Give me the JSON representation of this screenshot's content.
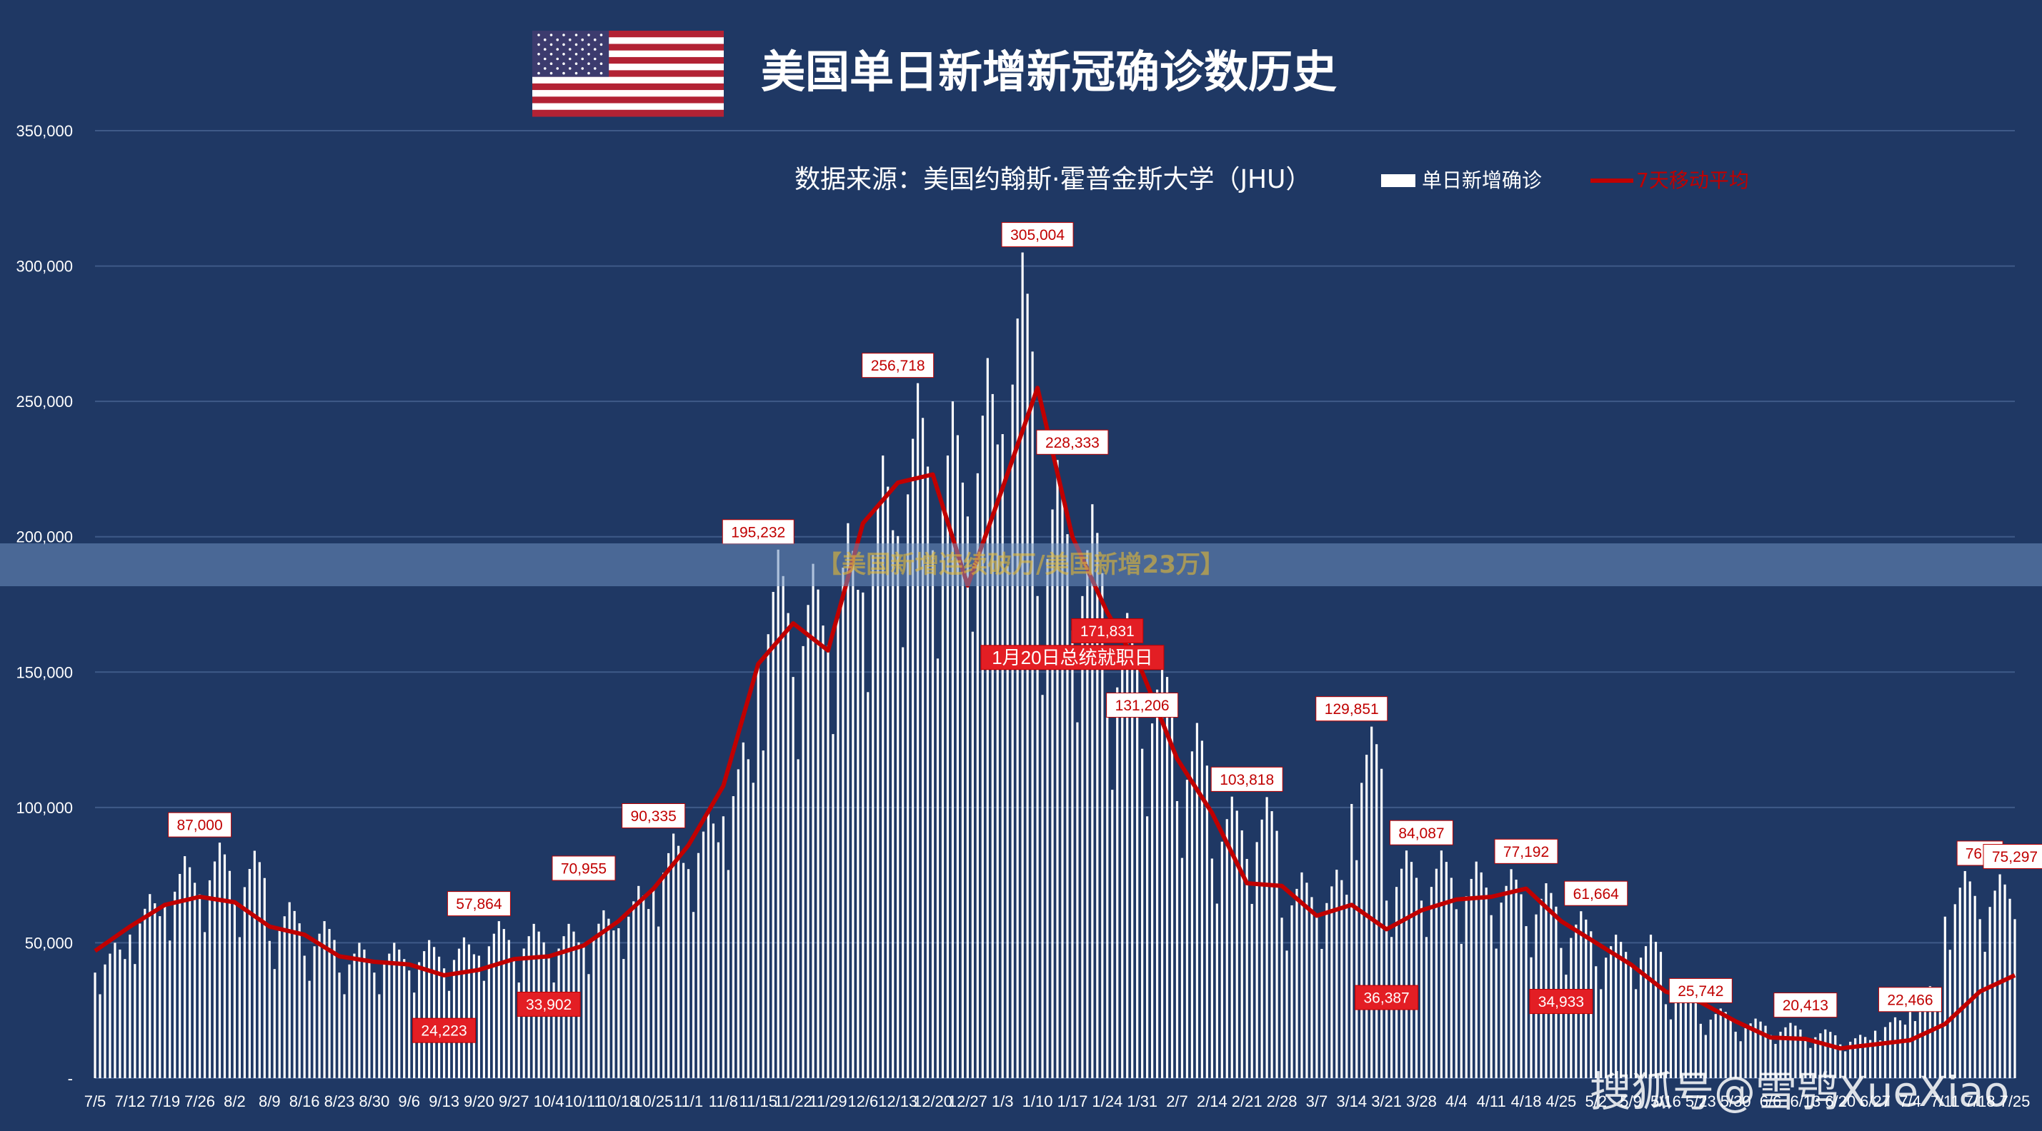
{
  "header": {
    "title": "美国单日新增新冠确诊数历史",
    "source": "数据来源：美国约翰斯·霍普金斯大学（JHU）"
  },
  "banner": {
    "text": "【美国新增连续破万/美国新增23万】"
  },
  "watermark": {
    "text": "搜狐号@雪鸮XueXiao"
  },
  "colors": {
    "background": "#1f3864",
    "bars": "#ffffff",
    "line": "#c00000",
    "grid": "#3f5a88"
  },
  "chart_data": {
    "type": "bar",
    "title": "美国单日新增新冠确诊数历史",
    "ylim": [
      0,
      350000
    ],
    "yticks": [
      0,
      50000,
      100000,
      150000,
      200000,
      250000,
      300000,
      350000
    ],
    "ytick_labels": [
      "-",
      "50,000",
      "100,000",
      "150,000",
      "200,000",
      "250,000",
      "300,000",
      "350,000"
    ],
    "x_tick_labels": [
      "7/5",
      "7/12",
      "7/19",
      "7/26",
      "8/2",
      "8/9",
      "8/16",
      "8/23",
      "8/30",
      "9/6",
      "9/13",
      "9/20",
      "9/27",
      "10/4",
      "10/11",
      "10/18",
      "10/25",
      "11/1",
      "11/8",
      "11/15",
      "11/22",
      "11/29",
      "12/6",
      "12/13",
      "12/20",
      "12/27",
      "1/3",
      "1/10",
      "1/17",
      "1/24",
      "1/31",
      "2/7",
      "2/14",
      "2/21",
      "2/28",
      "3/7",
      "3/14",
      "3/21",
      "3/28",
      "4/4",
      "4/11",
      "4/18",
      "4/25",
      "5/2",
      "5/9",
      "5/16",
      "5/23",
      "5/30",
      "6/6",
      "6/13",
      "6/20",
      "6/27",
      "7/4",
      "7/11",
      "7/18",
      "7/25"
    ],
    "legend": {
      "position": "top-right",
      "items": [
        {
          "name": "单日新增确诊",
          "color": "#ffffff"
        },
        {
          "name": "7天移动平均",
          "color": "#c00000"
        }
      ]
    },
    "series": [
      {
        "name": "单日新增确诊",
        "weekly_peaks": [
          50000,
          68000,
          82000,
          87000,
          84000,
          65000,
          58000,
          50000,
          50000,
          51000,
          52000,
          58000,
          57000,
          57000,
          62000,
          71000,
          90335,
          99000,
          124000,
          195232,
          190000,
          205000,
          230000,
          256718,
          250000,
          266000,
          305004,
          228333,
          212000,
          171831,
          156000,
          131206,
          104000,
          103818,
          76000,
          77000,
          129851,
          84087,
          84087,
          80000,
          77192,
          72000,
          61664,
          53000,
          53000,
          35000,
          25742,
          22000,
          20413,
          18000,
          16000,
          22466,
          34000,
          76500,
          75297,
          75297
        ]
      },
      {
        "name": "7天移动平均",
        "weekly_values": [
          47000,
          56000,
          64000,
          67000,
          65000,
          56000,
          53000,
          45000,
          43000,
          42000,
          38000,
          40000,
          44000,
          45000,
          49000,
          58000,
          70000,
          86000,
          108000,
          153000,
          168000,
          158000,
          205000,
          220000,
          223000,
          182000,
          218000,
          255000,
          200000,
          172000,
          150000,
          118000,
          98000,
          72000,
          71000,
          60000,
          64000,
          55000,
          62000,
          66000,
          67000,
          70000,
          58000,
          50000,
          42000,
          32000,
          28000,
          21000,
          15000,
          14500,
          11000,
          12500,
          14000,
          20000,
          32000,
          38000
        ]
      }
    ],
    "annotations": [
      {
        "text": "87,000",
        "x": "7/26",
        "y": 87000
      },
      {
        "text": "57,864",
        "x": "9/20",
        "y": 57864
      },
      {
        "text": "24,223",
        "x": "9/13",
        "y": 24223,
        "highlight": true
      },
      {
        "text": "33,902",
        "x": "10/4",
        "y": 33902,
        "highlight": true
      },
      {
        "text": "70,955",
        "x": "10/11",
        "y": 70955
      },
      {
        "text": "90,335",
        "x": "10/25",
        "y": 90335
      },
      {
        "text": "195,232",
        "x": "11/15",
        "y": 195232
      },
      {
        "text": "256,718",
        "x": "12/13",
        "y": 256718
      },
      {
        "text": "305,004",
        "x": "1/10",
        "y": 305004
      },
      {
        "text": "228,333",
        "x": "1/17",
        "y": 228333
      },
      {
        "text": "171,831",
        "x": "1/24",
        "y": 171831,
        "highlight": true
      },
      {
        "text": "1月20日总统就职日",
        "x": "1/17",
        "y": 162000,
        "highlight": true
      },
      {
        "text": "131,206",
        "x": "1/31",
        "y": 131206
      },
      {
        "text": "103,818",
        "x": "2/21",
        "y": 103818
      },
      {
        "text": "129,851",
        "x": "3/14",
        "y": 129851
      },
      {
        "text": "36,387",
        "x": "3/21",
        "y": 36387,
        "highlight": true
      },
      {
        "text": "84,087",
        "x": "3/28",
        "y": 84087
      },
      {
        "text": "77,192",
        "x": "4/18",
        "y": 77192
      },
      {
        "text": "34,933",
        "x": "4/25",
        "y": 34933,
        "highlight": true
      },
      {
        "text": "61,664",
        "x": "5/2",
        "y": 61664
      },
      {
        "text": "25,742",
        "x": "5/23",
        "y": 25742
      },
      {
        "text": "20,413",
        "x": "6/13",
        "y": 20413
      },
      {
        "text": "22,466",
        "x": "7/4",
        "y": 22466
      },
      {
        "text": "76,5",
        "x": "7/18",
        "y": 76500
      },
      {
        "text": "75,297",
        "x": "7/25",
        "y": 75297
      }
    ]
  }
}
